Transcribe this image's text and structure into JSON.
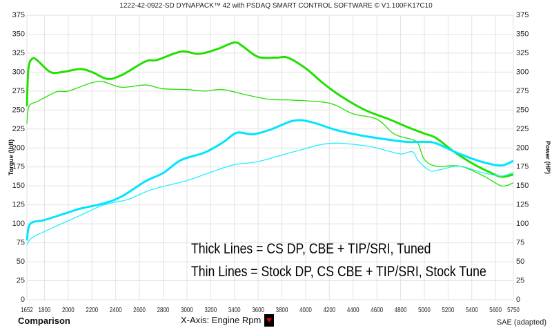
{
  "header": {
    "title": "1222-42-0922-SD DYNAPACK™ 42 with PSDAQ SMART CONTROL SOFTWARE © V1.100FK17C10"
  },
  "footer": {
    "comparison": "Comparison",
    "xaxis": "X-Axis: Engine Rpm",
    "standard": "SAE (adapted)"
  },
  "chart_data": {
    "type": "line",
    "title": "1222-42-0922-SD DYNAPACK™ 42 with PSDAQ SMART CONTROL SOFTWARE © V1.100FK17C10",
    "xlabel": "X-Axis: Engine Rpm",
    "ylabel": "Torque (lbft)",
    "y2label": "Power (HP)",
    "xlim": [
      1652,
      5750
    ],
    "ylim": [
      0,
      375
    ],
    "y2lim": [
      0,
      375
    ],
    "xticks": [
      "1652",
      "1800",
      "2000",
      "2200",
      "2400",
      "2600",
      "2800",
      "3000",
      "3200",
      "3400",
      "3600",
      "3800",
      "4000",
      "4200",
      "4400",
      "4600",
      "4800",
      "5000",
      "5200",
      "5400",
      "5600",
      "5750"
    ],
    "yticks": [
      "0",
      "25",
      "50",
      "75",
      "100",
      "125",
      "150",
      "175",
      "200",
      "225",
      "250",
      "275",
      "300",
      "325",
      "350",
      "375"
    ],
    "grid": true,
    "annotations": [
      "Thick Lines = CS DP, CBE + TIP/SRI,  Tuned",
      "Thin Lines = Stock DP, CS CBE + TIP/SRI, Stock Tune"
    ],
    "series": [
      {
        "id": "torque-tuned",
        "color": "#22e000",
        "thick": true,
        "points": [
          [
            1652,
            255
          ],
          [
            1665,
            305
          ],
          [
            1700,
            318
          ],
          [
            1750,
            314
          ],
          [
            1850,
            300
          ],
          [
            1950,
            300
          ],
          [
            2100,
            304
          ],
          [
            2200,
            300
          ],
          [
            2330,
            291
          ],
          [
            2450,
            296
          ],
          [
            2650,
            314
          ],
          [
            2750,
            316
          ],
          [
            2950,
            327
          ],
          [
            3100,
            324
          ],
          [
            3250,
            330
          ],
          [
            3400,
            339
          ],
          [
            3470,
            334
          ],
          [
            3600,
            320
          ],
          [
            3750,
            319
          ],
          [
            3850,
            319
          ],
          [
            4000,
            305
          ],
          [
            4150,
            285
          ],
          [
            4300,
            268
          ],
          [
            4500,
            250
          ],
          [
            4700,
            238
          ],
          [
            4850,
            228
          ],
          [
            5000,
            219
          ],
          [
            5100,
            213
          ],
          [
            5250,
            195
          ],
          [
            5400,
            180
          ],
          [
            5550,
            168
          ],
          [
            5650,
            162
          ],
          [
            5750,
            165
          ]
        ]
      },
      {
        "id": "torque-stock",
        "color": "#22e000",
        "thick": false,
        "points": [
          [
            1652,
            232
          ],
          [
            1670,
            255
          ],
          [
            1750,
            262
          ],
          [
            1900,
            274
          ],
          [
            2000,
            275
          ],
          [
            2200,
            286
          ],
          [
            2300,
            287
          ],
          [
            2450,
            280
          ],
          [
            2650,
            283
          ],
          [
            2800,
            278
          ],
          [
            3000,
            277
          ],
          [
            3150,
            275
          ],
          [
            3300,
            277
          ],
          [
            3500,
            270
          ],
          [
            3700,
            264
          ],
          [
            3900,
            263
          ],
          [
            4200,
            259
          ],
          [
            4400,
            245
          ],
          [
            4600,
            238
          ],
          [
            4750,
            218
          ],
          [
            4900,
            211
          ],
          [
            4950,
            205
          ],
          [
            5000,
            185
          ],
          [
            5100,
            176
          ],
          [
            5300,
            176
          ],
          [
            5500,
            163
          ],
          [
            5650,
            150
          ],
          [
            5750,
            154
          ]
        ]
      },
      {
        "id": "power-tuned",
        "color": "#00e5ff",
        "thick": true,
        "points": [
          [
            1652,
            78
          ],
          [
            1680,
            100
          ],
          [
            1800,
            105
          ],
          [
            2000,
            115
          ],
          [
            2100,
            120
          ],
          [
            2300,
            127
          ],
          [
            2450,
            136
          ],
          [
            2650,
            156
          ],
          [
            2800,
            167
          ],
          [
            2950,
            184
          ],
          [
            3150,
            194
          ],
          [
            3300,
            207
          ],
          [
            3420,
            220
          ],
          [
            3550,
            218
          ],
          [
            3700,
            224
          ],
          [
            3900,
            236
          ],
          [
            4050,
            234
          ],
          [
            4250,
            224
          ],
          [
            4450,
            217
          ],
          [
            4650,
            212
          ],
          [
            4850,
            208
          ],
          [
            5000,
            208
          ],
          [
            5100,
            206
          ],
          [
            5300,
            192
          ],
          [
            5500,
            181
          ],
          [
            5650,
            177
          ],
          [
            5750,
            183
          ]
        ]
      },
      {
        "id": "power-stock",
        "color": "#22f0ff",
        "thick": false,
        "points": [
          [
            1652,
            72
          ],
          [
            1700,
            82
          ],
          [
            1900,
            97
          ],
          [
            2100,
            111
          ],
          [
            2300,
            125
          ],
          [
            2500,
            132
          ],
          [
            2700,
            145
          ],
          [
            3000,
            157
          ],
          [
            3200,
            168
          ],
          [
            3400,
            178
          ],
          [
            3600,
            182
          ],
          [
            3900,
            195
          ],
          [
            4200,
            206
          ],
          [
            4500,
            203
          ],
          [
            4650,
            198
          ],
          [
            4800,
            192
          ],
          [
            4900,
            195
          ],
          [
            4950,
            183
          ],
          [
            5050,
            170
          ],
          [
            5150,
            172
          ],
          [
            5300,
            176
          ],
          [
            5500,
            167
          ],
          [
            5650,
            163
          ],
          [
            5750,
            168
          ]
        ]
      }
    ]
  }
}
